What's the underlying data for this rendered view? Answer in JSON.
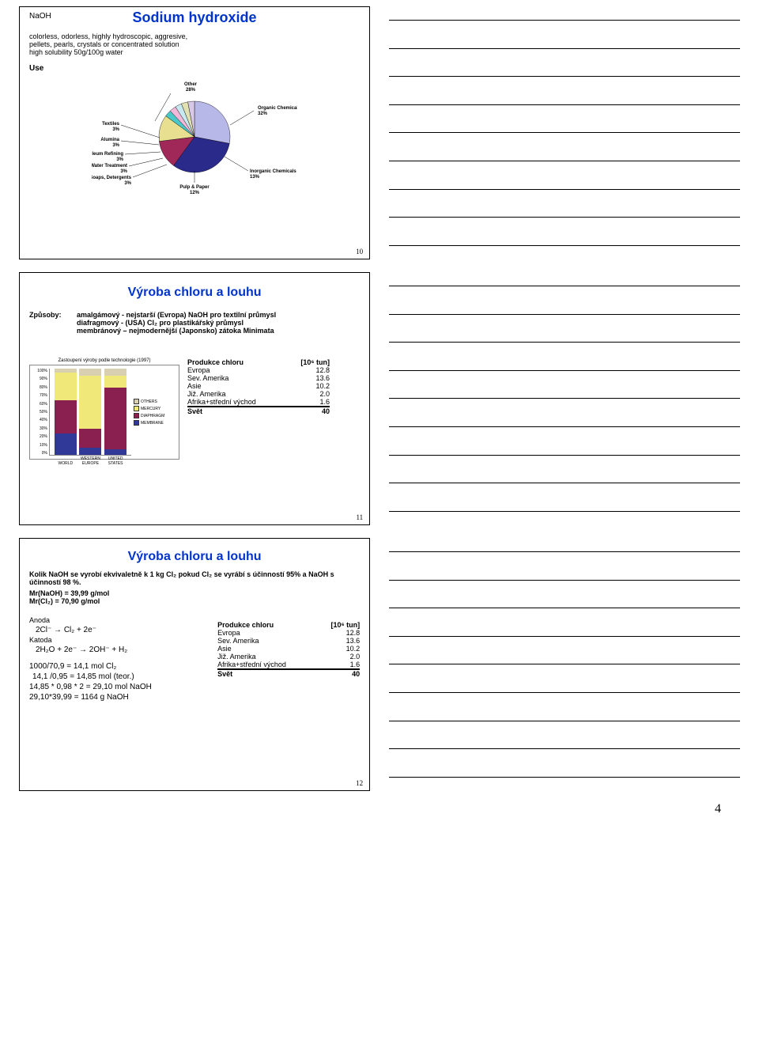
{
  "footer_page": "4",
  "slide1": {
    "title_prefix": "NaOH",
    "title": "Sodium hydroxide",
    "line1": "colorless, odorless, highly hydroscopic, aggresive,",
    "line2": "pellets, pearls, crystals or concentrated solution",
    "line3": "high solubility 50g/100g water",
    "use_label": "Use",
    "page_num": "10",
    "pie": {
      "slices": [
        {
          "label": "Other",
          "pct": "28%",
          "color": "#b8b8e8",
          "angle": 100.8
        },
        {
          "label": "Organic Chemicals",
          "pct": "32%",
          "color": "#2a2a8a",
          "angle": 115.2
        },
        {
          "label": "Inorganic Chemicals",
          "pct": "13%",
          "color": "#a02858",
          "angle": 46.8
        },
        {
          "label": "Pulp & Paper",
          "pct": "12%",
          "color": "#e8e090",
          "angle": 43.2
        },
        {
          "label": "Soaps, Detergents",
          "pct": "3%",
          "color": "#48c8c8",
          "angle": 10.8
        },
        {
          "label": "Water Treatment",
          "pct": "3%",
          "color": "#f0b8d8",
          "angle": 10.8
        },
        {
          "label": "Petroleum Refining",
          "pct": "3%",
          "color": "#c8e8f0",
          "angle": 10.8
        },
        {
          "label": "Alumina",
          "pct": "3%",
          "color": "#e0e0b0",
          "angle": 10.8
        },
        {
          "label": "Textiles",
          "pct": "3%",
          "color": "#d8c8e8",
          "angle": 10.8
        }
      ]
    }
  },
  "slide2": {
    "title": "Výroba chloru a louhu",
    "methods_label": "Způsoby:",
    "m1": "amalgámový - nejstarší (Evropa) NaOH pro textilní průmysl",
    "m2": "diafragmový - (USA) Cl₂ pro plastikářský průmysl",
    "m3": "membránový – nejmodernější (Japonsko) zátoka Minimata",
    "chart_caption": "Zastoupení výroby podle technologie (1997)",
    "page_num": "11",
    "stacked_chart": {
      "yticks": [
        "0%",
        "10%",
        "20%",
        "30%",
        "40%",
        "50%",
        "60%",
        "70%",
        "80%",
        "90%",
        "100%"
      ],
      "categories": [
        "WORLD",
        "WESTERN EUROPE",
        "UNITED STATES"
      ],
      "legend": [
        {
          "name": "OTHERS",
          "color": "#d8d0b0"
        },
        {
          "name": "MERCURY",
          "color": "#f0e878"
        },
        {
          "name": "DIAPHRAGM",
          "color": "#8a2050"
        },
        {
          "name": "MEMBRANE",
          "color": "#303898"
        }
      ],
      "bars": [
        {
          "segs": [
            25,
            38,
            32,
            5
          ]
        },
        {
          "segs": [
            8,
            22,
            62,
            8
          ]
        },
        {
          "segs": [
            6,
            72,
            14,
            8
          ]
        }
      ]
    },
    "prod_header": "Produkce chloru",
    "prod_unit": "[10⁶ tun]",
    "prod_rows": [
      {
        "r": "Evropa",
        "v": "12.8"
      },
      {
        "r": "Sev. Amerika",
        "v": "13.6"
      },
      {
        "r": "Asie",
        "v": "10.2"
      },
      {
        "r": "Již. Amerika",
        "v": "2.0"
      },
      {
        "r": "Afrika+střední východ",
        "v": "1.6"
      }
    ],
    "prod_total_r": "Svět",
    "prod_total_v": "40"
  },
  "slide3": {
    "title": "Výroba chloru a louhu",
    "q": "Kolik NaOH se vyrobí ekvivaletně k 1 kg Cl₂ pokud Cl₂ se vyrábí s účinností 95% a NaOH s účinností 98 %.",
    "mr1": "Mr(NaOH) = 39,99 g/mol",
    "mr2": "Mr(Cl₂) = 70,90 g/mol",
    "anoda_lbl": "Anoda",
    "anoda_eq": "2Cl⁻ → Cl₂ + 2e⁻",
    "katoda_lbl": "Katoda",
    "katoda_eq": "2H₂O + 2e⁻ → 2OH⁻ + H₂",
    "calc1": "1000/70,9 = 14,1 mol Cl₂",
    "calc2": "14,1 /0,95 = 14,85 mol (teor.)",
    "calc3": "14,85 * 0,98 * 2 = 29,10 mol NaOH",
    "calc4": "29,10*39,99 = 1164 g NaOH",
    "page_num": "12",
    "prod_header": "Produkce chloru",
    "prod_unit": "[10⁶ tun]",
    "prod_rows": [
      {
        "r": "Evropa",
        "v": "12.8"
      },
      {
        "r": "Sev. Amerika",
        "v": "13.6"
      },
      {
        "r": "Asie",
        "v": "10.2"
      },
      {
        "r": "Již. Amerika",
        "v": "2.0"
      },
      {
        "r": "Afrika+střední východ",
        "v": "1.6"
      }
    ],
    "prod_total_r": "Svět",
    "prod_total_v": "40"
  }
}
